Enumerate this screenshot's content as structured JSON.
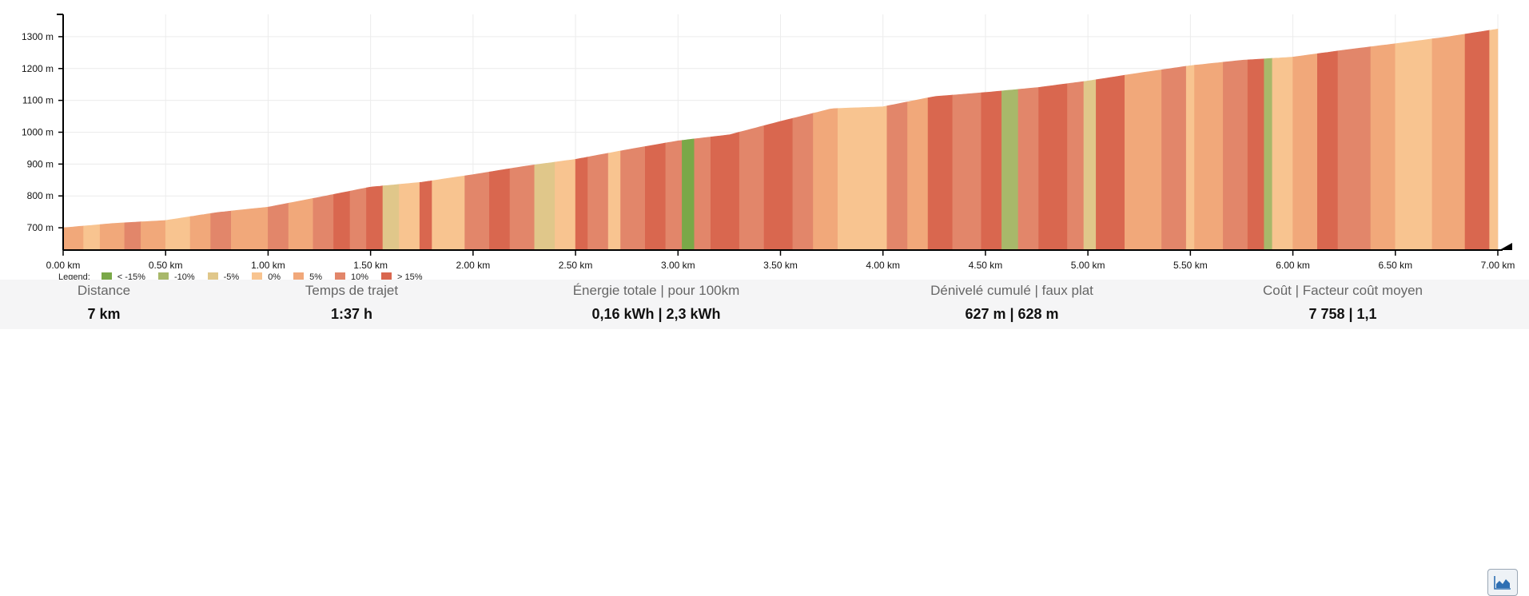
{
  "chart_data": {
    "type": "area",
    "x_unit": "km",
    "y_unit": "m",
    "xlim": [
      0,
      7
    ],
    "ylim": [
      630,
      1370
    ],
    "x_ticks": [
      0,
      0.5,
      1,
      1.5,
      2,
      2.5,
      3,
      3.5,
      4,
      4.5,
      5,
      5.5,
      6,
      6.5,
      7
    ],
    "x_tick_labels": [
      "0.00 km",
      "0.50 km",
      "1.00 km",
      "1.50 km",
      "2.00 km",
      "2.50 km",
      "3.00 km",
      "3.50 km",
      "4.00 km",
      "4.50 km",
      "5.00 km",
      "5.50 km",
      "6.00 km",
      "6.50 km",
      "7.00 km"
    ],
    "y_ticks": [
      700,
      800,
      900,
      1000,
      1100,
      1200,
      1300
    ],
    "y_tick_labels": [
      "700 m",
      "800 m",
      "900 m",
      "1000 m",
      "1100 m",
      "1200 m",
      "1300 m"
    ],
    "grid": true,
    "x": [
      0,
      0.25,
      0.5,
      0.75,
      1,
      1.25,
      1.5,
      1.75,
      2,
      2.25,
      2.5,
      2.75,
      3,
      3.25,
      3.5,
      3.75,
      4,
      4.25,
      4.5,
      4.75,
      5,
      5.25,
      5.5,
      5.75,
      6,
      6.25,
      6.5,
      6.75,
      7
    ],
    "y": [
      700,
      714,
      723,
      748,
      765,
      796,
      828,
      843,
      867,
      893,
      915,
      945,
      973,
      992,
      1034,
      1074,
      1080,
      1112,
      1125,
      1140,
      1161,
      1186,
      1209,
      1226,
      1236,
      1258,
      1278,
      1299,
      1324
    ],
    "segments": [
      {
        "from": 0.0,
        "to": 0.1,
        "grade": "5%"
      },
      {
        "from": 0.1,
        "to": 0.18,
        "grade": "0%"
      },
      {
        "from": 0.18,
        "to": 0.3,
        "grade": "5%"
      },
      {
        "from": 0.3,
        "to": 0.38,
        "grade": "10%"
      },
      {
        "from": 0.38,
        "to": 0.5,
        "grade": "5%"
      },
      {
        "from": 0.5,
        "to": 0.62,
        "grade": "0%"
      },
      {
        "from": 0.62,
        "to": 0.72,
        "grade": "5%"
      },
      {
        "from": 0.72,
        "to": 0.82,
        "grade": "10%"
      },
      {
        "from": 0.82,
        "to": 1.0,
        "grade": "5%"
      },
      {
        "from": 1.0,
        "to": 1.1,
        "grade": "10%"
      },
      {
        "from": 1.1,
        "to": 1.22,
        "grade": "5%"
      },
      {
        "from": 1.22,
        "to": 1.32,
        "grade": "10%"
      },
      {
        "from": 1.32,
        "to": 1.4,
        "grade": "> 15%"
      },
      {
        "from": 1.4,
        "to": 1.48,
        "grade": "10%"
      },
      {
        "from": 1.48,
        "to": 1.56,
        "grade": "> 15%"
      },
      {
        "from": 1.56,
        "to": 1.64,
        "grade": "-5%"
      },
      {
        "from": 1.64,
        "to": 1.74,
        "grade": "0%"
      },
      {
        "from": 1.74,
        "to": 1.8,
        "grade": "> 15%"
      },
      {
        "from": 1.8,
        "to": 1.96,
        "grade": "0%"
      },
      {
        "from": 1.96,
        "to": 2.08,
        "grade": "10%"
      },
      {
        "from": 2.08,
        "to": 2.18,
        "grade": "> 15%"
      },
      {
        "from": 2.18,
        "to": 2.3,
        "grade": "10%"
      },
      {
        "from": 2.3,
        "to": 2.4,
        "grade": "-5%"
      },
      {
        "from": 2.4,
        "to": 2.5,
        "grade": "0%"
      },
      {
        "from": 2.5,
        "to": 2.56,
        "grade": "> 15%"
      },
      {
        "from": 2.56,
        "to": 2.66,
        "grade": "10%"
      },
      {
        "from": 2.66,
        "to": 2.72,
        "grade": "0%"
      },
      {
        "from": 2.72,
        "to": 2.84,
        "grade": "10%"
      },
      {
        "from": 2.84,
        "to": 2.94,
        "grade": "> 15%"
      },
      {
        "from": 2.94,
        "to": 3.02,
        "grade": "10%"
      },
      {
        "from": 3.02,
        "to": 3.08,
        "grade": "< -15%"
      },
      {
        "from": 3.08,
        "to": 3.16,
        "grade": "10%"
      },
      {
        "from": 3.16,
        "to": 3.3,
        "grade": "> 15%"
      },
      {
        "from": 3.3,
        "to": 3.42,
        "grade": "10%"
      },
      {
        "from": 3.42,
        "to": 3.56,
        "grade": "> 15%"
      },
      {
        "from": 3.56,
        "to": 3.66,
        "grade": "10%"
      },
      {
        "from": 3.66,
        "to": 3.78,
        "grade": "5%"
      },
      {
        "from": 3.78,
        "to": 3.9,
        "grade": "0%"
      },
      {
        "from": 3.9,
        "to": 4.02,
        "grade": "0%"
      },
      {
        "from": 4.02,
        "to": 4.12,
        "grade": "10%"
      },
      {
        "from": 4.12,
        "to": 4.22,
        "grade": "5%"
      },
      {
        "from": 4.22,
        "to": 4.34,
        "grade": "> 15%"
      },
      {
        "from": 4.34,
        "to": 4.48,
        "grade": "10%"
      },
      {
        "from": 4.48,
        "to": 4.58,
        "grade": "> 15%"
      },
      {
        "from": 4.58,
        "to": 4.66,
        "grade": "-10%"
      },
      {
        "from": 4.66,
        "to": 4.76,
        "grade": "10%"
      },
      {
        "from": 4.76,
        "to": 4.9,
        "grade": "> 15%"
      },
      {
        "from": 4.9,
        "to": 4.98,
        "grade": "10%"
      },
      {
        "from": 4.98,
        "to": 5.04,
        "grade": "-5%"
      },
      {
        "from": 5.04,
        "to": 5.18,
        "grade": "> 15%"
      },
      {
        "from": 5.18,
        "to": 5.36,
        "grade": "5%"
      },
      {
        "from": 5.36,
        "to": 5.48,
        "grade": "10%"
      },
      {
        "from": 5.48,
        "to": 5.52,
        "grade": "0%"
      },
      {
        "from": 5.52,
        "to": 5.66,
        "grade": "5%"
      },
      {
        "from": 5.66,
        "to": 5.78,
        "grade": "10%"
      },
      {
        "from": 5.78,
        "to": 5.86,
        "grade": "> 15%"
      },
      {
        "from": 5.86,
        "to": 5.9,
        "grade": "-10%"
      },
      {
        "from": 5.9,
        "to": 6.0,
        "grade": "0%"
      },
      {
        "from": 6.0,
        "to": 6.12,
        "grade": "5%"
      },
      {
        "from": 6.12,
        "to": 6.22,
        "grade": "> 15%"
      },
      {
        "from": 6.22,
        "to": 6.38,
        "grade": "10%"
      },
      {
        "from": 6.38,
        "to": 6.5,
        "grade": "5%"
      },
      {
        "from": 6.5,
        "to": 6.68,
        "grade": "0%"
      },
      {
        "from": 6.68,
        "to": 6.84,
        "grade": "5%"
      },
      {
        "from": 6.84,
        "to": 6.96,
        "grade": "> 15%"
      },
      {
        "from": 6.96,
        "to": 7.0,
        "grade": "0%"
      }
    ]
  },
  "legend": {
    "title": "Legend:",
    "items": [
      {
        "label": "< -15%",
        "color": "#7aa848"
      },
      {
        "label": "-10%",
        "color": "#a8b86a"
      },
      {
        "label": "-5%",
        "color": "#e0c78a"
      },
      {
        "label": "0%",
        "color": "#f8c490"
      },
      {
        "label": "5%",
        "color": "#f1a87a"
      },
      {
        "label": "10%",
        "color": "#e2866a"
      },
      {
        "label": "> 15%",
        "color": "#d9674f"
      }
    ]
  },
  "stats": [
    {
      "label": "Distance",
      "value": "7 km"
    },
    {
      "label": "Temps de trajet",
      "value": "1:37 h"
    },
    {
      "label": "Énergie totale | pour 100km",
      "value": "0,16 kWh | 2,3 kWh"
    },
    {
      "label": "Dénivelé cumulé | faux plat",
      "value": "627 m | 628 m"
    },
    {
      "label": "Coût | Facteur coût moyen",
      "value": "7 758 | 1,1"
    }
  ],
  "chart_button": {
    "icon": "area-chart-icon"
  }
}
